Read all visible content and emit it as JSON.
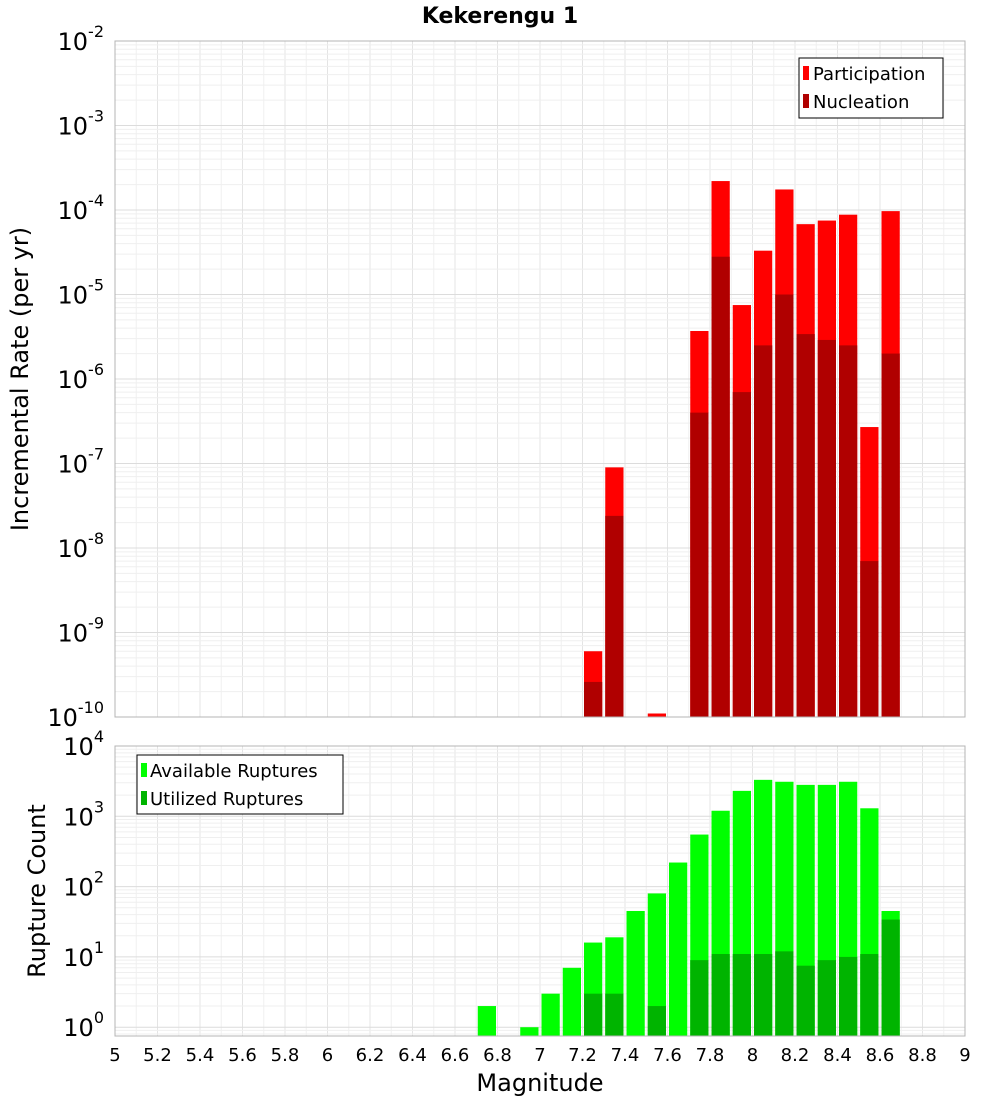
{
  "chart_data": [
    {
      "type": "bar",
      "title": "Kekerengu 1",
      "ylabel": "Incremental Rate (per yr)",
      "xlabel": "",
      "yscale": "log",
      "ylim": [
        1e-10,
        0.01
      ],
      "xlim": [
        5,
        9
      ],
      "bin_width": 0.1,
      "grid": true,
      "legend_position": "top-right",
      "y_ticks": [
        {
          "base": "10",
          "exp": "-10"
        },
        {
          "base": "10",
          "exp": "-9"
        },
        {
          "base": "10",
          "exp": "-8"
        },
        {
          "base": "10",
          "exp": "-7"
        },
        {
          "base": "10",
          "exp": "-6"
        },
        {
          "base": "10",
          "exp": "-5"
        },
        {
          "base": "10",
          "exp": "-4"
        },
        {
          "base": "10",
          "exp": "-3"
        },
        {
          "base": "10",
          "exp": "-2"
        }
      ],
      "x": [
        7.25,
        7.35,
        7.55,
        7.75,
        7.85,
        7.95,
        8.05,
        8.15,
        8.25,
        8.35,
        8.45,
        8.55,
        8.65
      ],
      "series": [
        {
          "name": "Participation",
          "color": "#ff0000",
          "values": [
            6e-10,
            9e-08,
            1.1e-10,
            3.7e-06,
            0.00022,
            7.5e-06,
            3.3e-05,
            0.000175,
            6.8e-05,
            7.5e-05,
            8.8e-05,
            2.7e-07,
            9.7e-05
          ]
        },
        {
          "name": "Nucleation",
          "color": "#b00000",
          "values": [
            2.6e-10,
            2.4e-08,
            null,
            4e-07,
            2.8e-05,
            7e-07,
            2.5e-06,
            1e-05,
            3.4e-06,
            2.9e-06,
            2.5e-06,
            7e-09,
            2e-06
          ]
        }
      ]
    },
    {
      "type": "bar",
      "title": "",
      "ylabel": "Rupture Count",
      "xlabel": "Magnitude",
      "yscale": "log",
      "ylim": [
        0.75,
        10000
      ],
      "xlim": [
        5,
        9
      ],
      "bin_width": 0.1,
      "grid": true,
      "legend_position": "top-left",
      "y_ticks": [
        {
          "base": "10",
          "exp": "0",
          "value": 1
        },
        {
          "base": "10",
          "exp": "1",
          "value": 10
        },
        {
          "base": "10",
          "exp": "2",
          "value": 100
        },
        {
          "base": "10",
          "exp": "3",
          "value": 1000
        },
        {
          "base": "10",
          "exp": "4",
          "value": 10000
        }
      ],
      "x_ticks": [
        "5",
        "5.2",
        "5.4",
        "5.6",
        "5.8",
        "6",
        "6.2",
        "6.4",
        "6.6",
        "6.8",
        "7",
        "7.2",
        "7.4",
        "7.6",
        "7.8",
        "8",
        "8.2",
        "8.4",
        "8.6",
        "8.8",
        "9"
      ],
      "x": [
        6.75,
        6.95,
        7.05,
        7.15,
        7.25,
        7.35,
        7.45,
        7.55,
        7.65,
        7.75,
        7.85,
        7.95,
        8.05,
        8.15,
        8.25,
        8.35,
        8.45,
        8.55,
        8.65
      ],
      "series": [
        {
          "name": "Available Ruptures",
          "color": "#00ff00",
          "values": [
            2,
            1,
            3,
            7,
            16,
            19,
            45,
            80,
            220,
            550,
            1200,
            2300,
            3300,
            3100,
            2800,
            2800,
            3100,
            1300,
            45
          ]
        },
        {
          "name": "Utilized Ruptures",
          "color": "#00b400",
          "values": [
            null,
            null,
            null,
            null,
            3,
            3,
            null,
            2,
            null,
            9,
            11,
            11,
            11,
            12,
            7.5,
            9,
            10,
            11,
            34
          ]
        }
      ]
    }
  ]
}
